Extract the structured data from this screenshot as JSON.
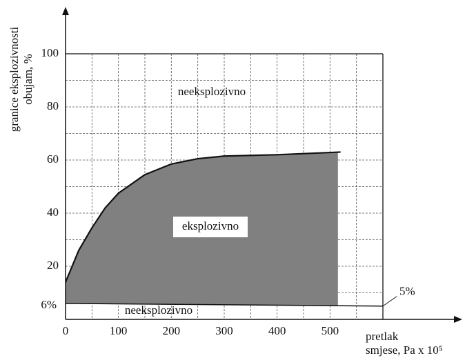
{
  "chart_data": {
    "type": "area",
    "y_label": [
      "granice eksplozivnosti",
      "obujam, %"
    ],
    "x_label": [
      "pretlak",
      "smjese, Pa x 10⁵"
    ],
    "xlim": [
      0,
      600
    ],
    "ylim": [
      0,
      100
    ],
    "xticks": [
      0,
      100,
      200,
      300,
      400,
      500
    ],
    "yticks": [
      20,
      40,
      60,
      80,
      100
    ],
    "grid": true,
    "color": "#808080",
    "series": [
      {
        "x": [
          0,
          25,
          50,
          75,
          100,
          150,
          200,
          250,
          300,
          400,
          520
        ],
        "values": [
          14,
          26,
          34.5,
          42,
          47.5,
          54.5,
          58.5,
          60.5,
          61.5,
          62,
          63
        ]
      },
      {
        "x": [
          0,
          600
        ],
        "values": [
          6,
          5
        ]
      }
    ],
    "annotations": [
      "neeksplozivno",
      "eksplozivno",
      "neeksplozivno",
      "6%",
      "5%"
    ]
  }
}
